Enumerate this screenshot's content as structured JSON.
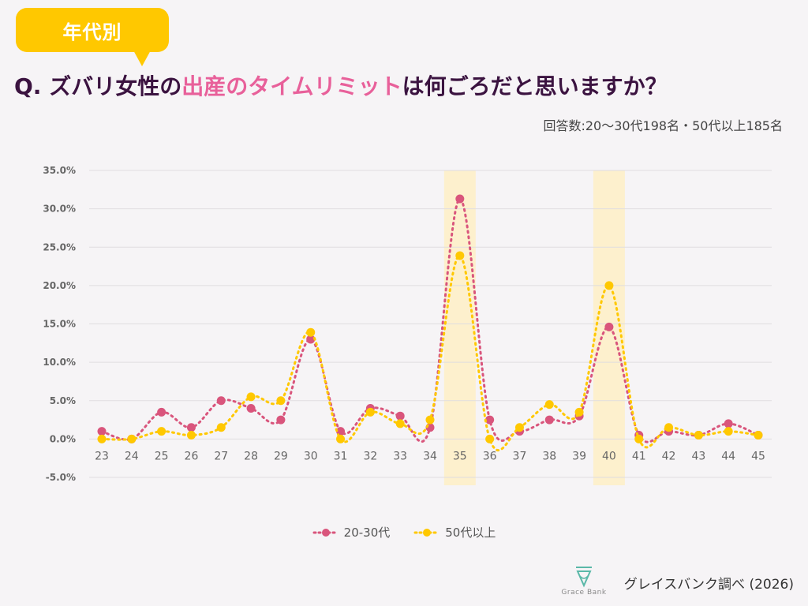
{
  "header": {
    "tag": "年代別",
    "question_prefix": "Q. ズバリ女性の",
    "question_highlight": "出産のタイムリミット",
    "question_suffix": "は何ごろだと思いますか？",
    "respondents": "回答数:20〜30代198名・50代以上185名"
  },
  "footer": {
    "brand_name": "Grace Bank",
    "source": "グレイスバンク調べ (2026)"
  },
  "colors": {
    "accent_yellow": "#ffc800",
    "accent_pink": "#e8609a",
    "highlight_band": "#fdf0cd"
  },
  "chart_data": {
    "type": "line",
    "title": "",
    "xlabel": "",
    "ylabel": "",
    "x": [
      "23",
      "24",
      "25",
      "26",
      "27",
      "28",
      "29",
      "30",
      "31",
      "32",
      "33",
      "34",
      "35",
      "36",
      "37",
      "38",
      "39",
      "40",
      "41",
      "42",
      "43",
      "44",
      "45"
    ],
    "yticks": [
      "-5.0%",
      "0.0%",
      "5.0%",
      "10.0%",
      "15.0%",
      "20.0%",
      "25.0%",
      "30.0%",
      "35.0%"
    ],
    "ylim": [
      -5,
      35
    ],
    "highlighted_categories": [
      "35",
      "40"
    ],
    "grid": true,
    "legend_position": "bottom",
    "series": [
      {
        "name": "20-30代",
        "color": "#d9557c",
        "values": [
          1.0,
          0.0,
          3.5,
          1.5,
          5.0,
          4.0,
          2.5,
          13.0,
          1.0,
          4.0,
          3.0,
          1.5,
          31.3,
          2.5,
          1.0,
          2.5,
          3.0,
          14.6,
          0.5,
          1.0,
          0.5,
          2.0,
          0.5
        ]
      },
      {
        "name": "50代以上",
        "color": "#ffc800",
        "values": [
          0.0,
          0.0,
          1.0,
          0.5,
          1.5,
          5.5,
          5.0,
          13.9,
          0.0,
          3.5,
          2.0,
          2.5,
          23.9,
          0.0,
          1.5,
          4.5,
          3.5,
          20.0,
          0.0,
          1.5,
          0.5,
          1.0,
          0.5
        ]
      }
    ]
  }
}
